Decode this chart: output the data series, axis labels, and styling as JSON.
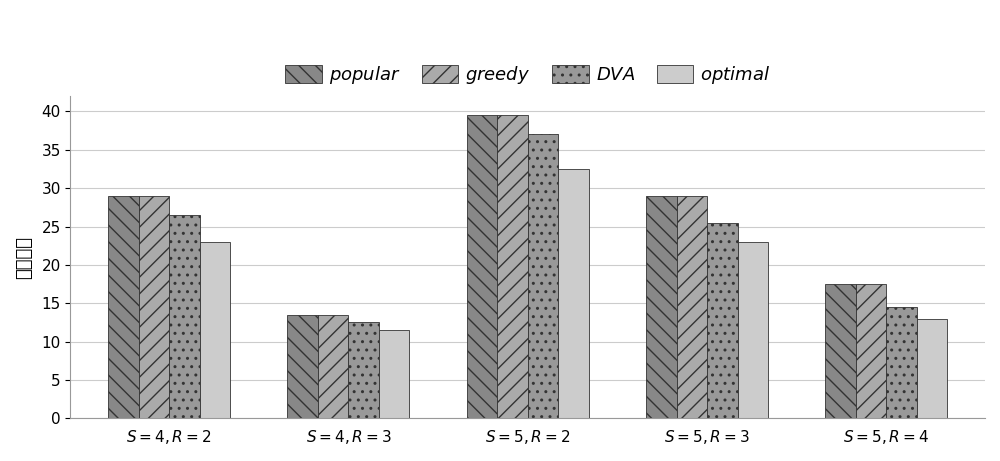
{
  "categories": [
    "S=4,R=2",
    "S=4,R=3",
    "S=5,R=2",
    "S=5,R=3",
    "S=5,R=4"
  ],
  "series": {
    "popular": [
      29,
      13.5,
      39.5,
      29,
      17.5
    ],
    "greedy": [
      29,
      13.5,
      39.5,
      29,
      17.5
    ],
    "DVA": [
      26.5,
      12.5,
      37,
      25.5,
      14.5
    ],
    "optimal": [
      23,
      11.5,
      32.5,
      23,
      13
    ]
  },
  "legend_labels": [
    "popular",
    "greedy",
    "DVA",
    "optimal"
  ],
  "ylabel": "通信负载",
  "ylim": [
    0,
    42
  ],
  "yticks": [
    0,
    5,
    10,
    15,
    20,
    25,
    30,
    35,
    40
  ],
  "bar_width": 0.17,
  "colors": [
    "#888888",
    "#aaaaaa",
    "#999999",
    "#cccccc"
  ],
  "hatches": [
    "\\\\",
    "//",
    "..",
    ""
  ],
  "tick_fontsize": 11,
  "legend_fontsize": 13,
  "axis_fontsize": 13,
  "background_color": "#ffffff",
  "grid_color": "#cccccc",
  "edgecolor": "#333333"
}
